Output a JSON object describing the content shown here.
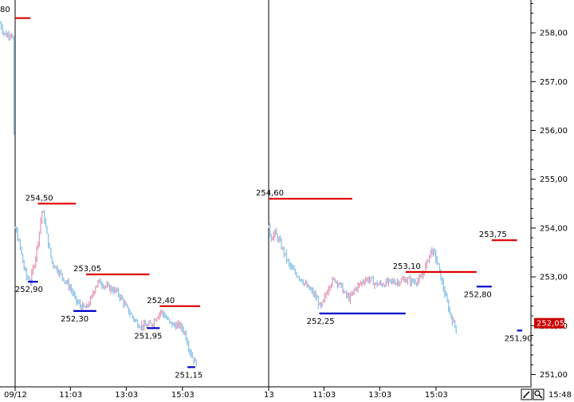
{
  "chart_data": {
    "type": "candlestick",
    "y_axis": {
      "range": [
        250.8,
        258.7
      ],
      "ticks": [
        "251,00",
        "252,00",
        "253,00",
        "254,00",
        "255,00",
        "256,00",
        "257,00",
        "258,00"
      ],
      "tick_values": [
        251,
        252,
        253,
        254,
        255,
        256,
        257,
        258
      ],
      "position": "right"
    },
    "x_axis": {
      "labels": [
        {
          "text": "09/12",
          "t": 0
        },
        {
          "text": "11:03",
          "t": 0.218
        },
        {
          "text": "13:03",
          "t": 0.438
        },
        {
          "text": "15:03",
          "t": 0.66
        },
        {
          "text": "13",
          "t": 1.0
        },
        {
          "text": "11:03",
          "t": 1.218
        },
        {
          "text": "13:03",
          "t": 1.438
        },
        {
          "text": "15:03",
          "t": 1.66
        }
      ],
      "clock": "15:48"
    },
    "day_separators": [
      0,
      1.0
    ],
    "truncated_label": "80",
    "last_price": {
      "value": 252.05,
      "label": "252,05"
    },
    "levels": [
      {
        "kind": "high",
        "day": 0,
        "value": 258.3,
        "t_start": 0.0,
        "t_end": 0.06
      },
      {
        "kind": "high",
        "day": 1,
        "value": 254.5,
        "t_start": 0.09,
        "t_end": 0.24,
        "label": "254,50"
      },
      {
        "kind": "low",
        "day": 1,
        "value": 252.9,
        "t_start": 0.05,
        "t_end": 0.09,
        "label": "252,90"
      },
      {
        "kind": "high",
        "day": 1,
        "value": 253.05,
        "t_start": 0.28,
        "t_end": 0.53,
        "label": "253,05"
      },
      {
        "kind": "low",
        "day": 1,
        "value": 252.3,
        "t_start": 0.23,
        "t_end": 0.32,
        "label": "252,30"
      },
      {
        "kind": "high",
        "day": 1,
        "value": 252.4,
        "t_start": 0.57,
        "t_end": 0.73,
        "label": "252,40"
      },
      {
        "kind": "low",
        "day": 1,
        "value": 251.95,
        "t_start": 0.52,
        "t_end": 0.57,
        "label": "251,95"
      },
      {
        "kind": "low",
        "day": 1,
        "value": 251.15,
        "t_start": 0.68,
        "t_end": 0.71,
        "label": "251,15"
      },
      {
        "kind": "high",
        "day": 2,
        "value": 254.6,
        "t_start": 1.0,
        "t_end": 1.33,
        "label": "254,60"
      },
      {
        "kind": "low",
        "day": 2,
        "value": 252.25,
        "t_start": 1.2,
        "t_end": 1.54,
        "label": "252,25"
      },
      {
        "kind": "high",
        "day": 2,
        "value": 253.1,
        "t_start": 1.54,
        "t_end": 1.82,
        "label": "253,10"
      },
      {
        "kind": "low",
        "day": 2,
        "value": 252.8,
        "t_start": 1.82,
        "t_end": 1.88,
        "label": "252,80"
      },
      {
        "kind": "high",
        "day": 2,
        "value": 253.75,
        "t_start": 1.88,
        "t_end": 1.98,
        "label": "253,75"
      },
      {
        "kind": "low",
        "day": 2,
        "value": 251.9,
        "t_start": 1.98,
        "t_end": 2.0,
        "label": "251,90"
      }
    ],
    "price_path": [
      [
        -0.06,
        258.2
      ],
      [
        -0.045,
        258.0
      ],
      [
        -0.035,
        257.95
      ],
      [
        -0.01,
        258.0
      ],
      [
        0.0,
        254.0
      ],
      [
        0.01,
        253.8
      ],
      [
        0.02,
        253.6
      ],
      [
        0.03,
        253.3
      ],
      [
        0.045,
        253.0
      ],
      [
        0.06,
        252.9
      ],
      [
        0.08,
        253.4
      ],
      [
        0.095,
        253.9
      ],
      [
        0.105,
        254.35
      ],
      [
        0.115,
        254.2
      ],
      [
        0.13,
        253.7
      ],
      [
        0.145,
        253.3
      ],
      [
        0.16,
        253.2
      ],
      [
        0.18,
        253.05
      ],
      [
        0.2,
        252.9
      ],
      [
        0.22,
        252.75
      ],
      [
        0.24,
        252.5
      ],
      [
        0.26,
        252.4
      ],
      [
        0.28,
        252.35
      ],
      [
        0.3,
        252.55
      ],
      [
        0.315,
        252.8
      ],
      [
        0.33,
        252.9
      ],
      [
        0.345,
        252.85
      ],
      [
        0.36,
        252.8
      ],
      [
        0.38,
        252.75
      ],
      [
        0.4,
        252.7
      ],
      [
        0.42,
        252.55
      ],
      [
        0.44,
        252.35
      ],
      [
        0.46,
        252.2
      ],
      [
        0.48,
        252.05
      ],
      [
        0.5,
        252.0
      ],
      [
        0.52,
        251.98
      ],
      [
        0.54,
        252.05
      ],
      [
        0.56,
        252.2
      ],
      [
        0.575,
        252.3
      ],
      [
        0.59,
        252.2
      ],
      [
        0.61,
        252.05
      ],
      [
        0.63,
        252.0
      ],
      [
        0.65,
        252.0
      ],
      [
        0.67,
        251.85
      ],
      [
        0.685,
        251.55
      ],
      [
        0.7,
        251.35
      ],
      [
        0.71,
        251.25
      ],
      [
        0.95,
        251.3
      ],
      [
        1.0,
        254.0
      ],
      [
        1.01,
        253.8
      ],
      [
        1.025,
        253.9
      ],
      [
        1.04,
        253.75
      ],
      [
        1.06,
        253.5
      ],
      [
        1.08,
        253.25
      ],
      [
        1.1,
        253.1
      ],
      [
        1.13,
        252.95
      ],
      [
        1.15,
        252.8
      ],
      [
        1.17,
        252.7
      ],
      [
        1.19,
        252.55
      ],
      [
        1.205,
        252.35
      ],
      [
        1.22,
        252.55
      ],
      [
        1.24,
        252.85
      ],
      [
        1.26,
        252.95
      ],
      [
        1.28,
        252.85
      ],
      [
        1.3,
        252.65
      ],
      [
        1.32,
        252.55
      ],
      [
        1.34,
        252.75
      ],
      [
        1.36,
        252.85
      ],
      [
        1.38,
        252.95
      ],
      [
        1.4,
        252.95
      ],
      [
        1.42,
        252.85
      ],
      [
        1.45,
        252.85
      ],
      [
        1.48,
        252.9
      ],
      [
        1.51,
        252.9
      ],
      [
        1.54,
        252.95
      ],
      [
        1.57,
        252.9
      ],
      [
        1.6,
        252.95
      ],
      [
        1.625,
        253.3
      ],
      [
        1.64,
        253.55
      ],
      [
        1.655,
        253.45
      ],
      [
        1.67,
        253.2
      ],
      [
        1.685,
        252.85
      ],
      [
        1.7,
        252.55
      ],
      [
        1.715,
        252.25
      ],
      [
        1.73,
        252.05
      ],
      [
        1.74,
        251.95
      ]
    ]
  },
  "colors": {
    "high_level": "#e00000",
    "low_level": "#0000cc",
    "last_price_bg": "#cc0000",
    "bar_up": "#e79ab8",
    "bar_down": "#8cc3e8",
    "separator": "#000000",
    "axis": "#000000"
  },
  "icons": [
    "edit-icon",
    "zoom-icon"
  ]
}
